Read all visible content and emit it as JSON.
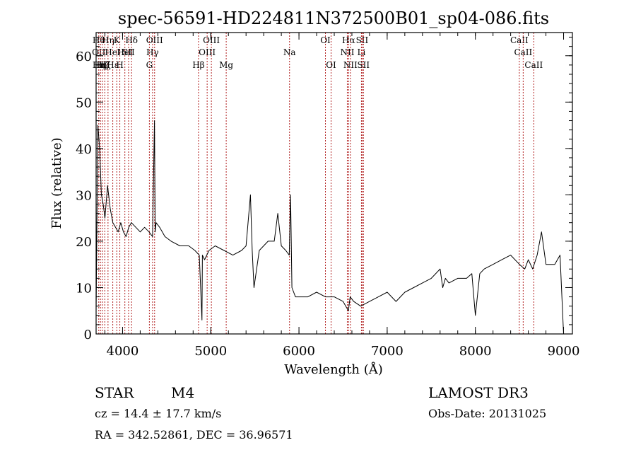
{
  "chart_data": {
    "type": "line",
    "title": "spec-56591-HD224811N372500B01_sp04-086.fits",
    "xlabel": "Wavelength (Å)",
    "ylabel": "Flux (relative)",
    "xlim": [
      3700,
      9100
    ],
    "ylim": [
      0,
      65
    ],
    "xticks": [
      4000,
      5000,
      6000,
      7000,
      8000,
      9000
    ],
    "yticks": [
      0,
      10,
      20,
      30,
      40,
      50,
      60
    ],
    "line_color": "#000000",
    "marker_color": "#b22222",
    "series": [
      {
        "x": [
          3700,
          3720,
          3740,
          3760,
          3780,
          3800,
          3830,
          3860,
          3890,
          3920,
          3950,
          3980,
          4010,
          4040,
          4070,
          4100,
          4150,
          4200,
          4250,
          4300,
          4340,
          4362,
          4370,
          4380,
          4420,
          4480,
          4550,
          4650,
          4750,
          4820,
          4870,
          4900,
          4905,
          4930,
          4980,
          5050,
          5150,
          5250,
          5350,
          5400,
          5450,
          5470,
          5490,
          5550,
          5650,
          5720,
          5760,
          5800,
          5850,
          5890,
          5905,
          5920,
          5960,
          6000,
          6100,
          6200,
          6300,
          6400,
          6500,
          6560,
          6580,
          6620,
          6700,
          6800,
          6900,
          7000,
          7100,
          7200,
          7300,
          7400,
          7500,
          7600,
          7630,
          7660,
          7700,
          7800,
          7900,
          7960,
          8000,
          8050,
          8100,
          8200,
          8300,
          8400,
          8500,
          8560,
          8600,
          8650,
          8700,
          8750,
          8800,
          8900,
          8960,
          9000
        ],
        "y": [
          5,
          45,
          40,
          30,
          28,
          25,
          32,
          27,
          24,
          23,
          22,
          24,
          22,
          21,
          23,
          24,
          23,
          22,
          23,
          22,
          21,
          46,
          22,
          24,
          23,
          21,
          20,
          19,
          19,
          18,
          17,
          3,
          17,
          16,
          18,
          19,
          18,
          17,
          18,
          19,
          30,
          18,
          10,
          18,
          20,
          20,
          26,
          19,
          18,
          17,
          30,
          10,
          8,
          8,
          8,
          9,
          8,
          8,
          7,
          5,
          8,
          7,
          6,
          7,
          8,
          9,
          7,
          9,
          10,
          11,
          12,
          14,
          10,
          12,
          11,
          12,
          12,
          13,
          4,
          13,
          14,
          15,
          16,
          17,
          15,
          14,
          16,
          14,
          17,
          22,
          15,
          15,
          17,
          0
        ]
      }
    ],
    "line_markers": [
      {
        "x": 3730,
        "labels": [
          "Hθ",
          "OII",
          "Hη"
        ]
      },
      {
        "x": 3750,
        "labels": [
          null,
          null,
          "Hη"
        ]
      },
      {
        "x": 3771,
        "labels": [
          null,
          null,
          "Hζ"
        ]
      },
      {
        "x": 3798,
        "labels": [
          null,
          null,
          "Hζ"
        ]
      },
      {
        "x": 3835,
        "labels": [
          "Hη",
          null,
          null
        ]
      },
      {
        "x": 3889,
        "labels": [
          null,
          "HeI",
          "Hε"
        ]
      },
      {
        "x": 3934,
        "labels": [
          "K",
          null,
          null
        ]
      },
      {
        "x": 3969,
        "labels": [
          null,
          null,
          "H"
        ]
      },
      {
        "x": 4026,
        "labels": [
          null,
          "HeI",
          null
        ]
      },
      {
        "x": 4068,
        "labels": [
          null,
          "SII",
          null
        ]
      },
      {
        "x": 4102,
        "labels": [
          "Hδ",
          null,
          null
        ]
      },
      {
        "x": 4304,
        "labels": [
          null,
          null,
          "G"
        ]
      },
      {
        "x": 4340,
        "labels": [
          null,
          "Hγ",
          null
        ]
      },
      {
        "x": 4363,
        "labels": [
          "OIII",
          null,
          null
        ]
      },
      {
        "x": 4861,
        "labels": [
          null,
          null,
          "Hβ"
        ]
      },
      {
        "x": 4959,
        "labels": [
          null,
          "OIII",
          null
        ]
      },
      {
        "x": 5007,
        "labels": [
          "OIII",
          null,
          null
        ]
      },
      {
        "x": 5175,
        "labels": [
          null,
          null,
          "Mg"
        ]
      },
      {
        "x": 5893,
        "labels": [
          null,
          "Na",
          null
        ]
      },
      {
        "x": 6300,
        "labels": [
          "OI",
          null,
          null
        ]
      },
      {
        "x": 6364,
        "labels": [
          null,
          null,
          "OI"
        ]
      },
      {
        "x": 6548,
        "labels": [
          null,
          "NII",
          null
        ]
      },
      {
        "x": 6563,
        "labels": [
          "Hα",
          null,
          null
        ]
      },
      {
        "x": 6583,
        "labels": [
          null,
          null,
          "NII"
        ]
      },
      {
        "x": 6708,
        "labels": [
          null,
          "Li",
          null
        ]
      },
      {
        "x": 6716,
        "labels": [
          "SII",
          null,
          null
        ]
      },
      {
        "x": 6731,
        "labels": [
          null,
          null,
          "SII"
        ]
      },
      {
        "x": 8498,
        "labels": [
          "CaII",
          null,
          null
        ]
      },
      {
        "x": 8542,
        "labels": [
          null,
          "CaII",
          null
        ]
      },
      {
        "x": 8662,
        "labels": [
          null,
          null,
          "CaII"
        ]
      }
    ]
  },
  "info": {
    "object_class": "STAR",
    "subclass": "M4",
    "survey": "LAMOST DR3",
    "cz": "cz = 14.4 ± 17.7 km/s",
    "obs_date": "Obs-Date: 20131025",
    "coords": "RA = 342.52861, DEC =  36.96571"
  }
}
